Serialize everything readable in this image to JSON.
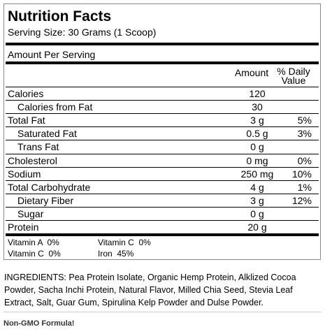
{
  "header": {
    "title": "Nutrition Facts",
    "serving_size": "Serving Size: 30 Grams (1 Scoop)",
    "amount_per_serving": "Amount Per Serving"
  },
  "table": {
    "columns": [
      "Amount",
      "% Daily Value"
    ],
    "rows": [
      [
        "Calories",
        "120",
        ""
      ],
      [
        "Calories from Fat",
        "30",
        ""
      ],
      [
        "Total Fat",
        "3 g",
        "5%"
      ],
      [
        "Saturated Fat",
        "0.5 g",
        "3%"
      ],
      [
        "Trans Fat",
        "0 g",
        ""
      ],
      [
        "Cholesterol",
        "0 mg",
        "0%"
      ],
      [
        "Sodium",
        "250 mg",
        "10%"
      ],
      [
        "Total Carbohydrate",
        "4 g",
        "1%"
      ],
      [
        "Dietary Fiber",
        "3 g",
        "12%"
      ],
      [
        "Sugar",
        "0 g",
        ""
      ],
      [
        "Protein",
        "20 g",
        ""
      ]
    ]
  },
  "vitamins": [
    [
      "Vitamin A  0%",
      "Vitamin C  0%"
    ],
    [
      "Vitamin C  0%",
      "Iron  45%"
    ]
  ],
  "ingredients": "INGREDIENTS: Pea Protein Isolate, Organic Hemp Protein, Alklized Cocoa Powder, Sacha Inchi Protein, Natural Flavor, Milled Chia Seed, Stevia Leaf Extract, Salt, Guar Gum, Spirulina Kelp Powder and Dulse Powder.",
  "note": "Non-GMO Formula!"
}
